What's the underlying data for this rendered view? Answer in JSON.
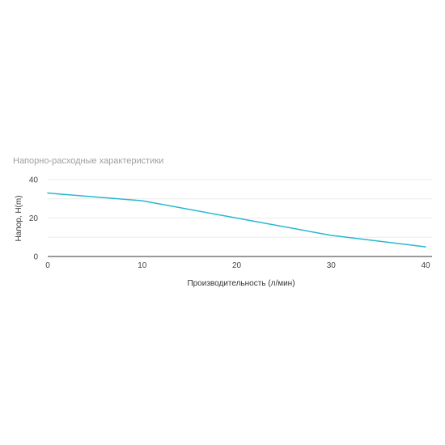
{
  "chart_data": {
    "type": "line",
    "title": "Напорно-расходные характеристики",
    "xlabel": "Производительность (л/мин)",
    "ylabel": "Напор, Н(m)",
    "xlim": [
      0,
      40
    ],
    "ylim": [
      0,
      40
    ],
    "xticks": [
      0,
      10,
      20,
      30,
      40
    ],
    "yticks": [
      0,
      20,
      40
    ],
    "grid": true,
    "legend": "none",
    "series": [
      {
        "color": "#26b8d0",
        "x": [
          0,
          10,
          20,
          30,
          40
        ],
        "y": [
          33,
          29,
          20,
          11,
          5
        ]
      }
    ]
  }
}
